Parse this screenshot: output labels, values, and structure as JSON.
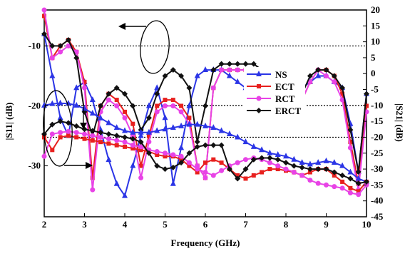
{
  "chart_data": {
    "type": "line",
    "xlabel": "Frequency (GHz)",
    "ylabel_left": "|S11| (dB)",
    "ylabel_right": "|S21| (dB)",
    "x_ticks": [
      2,
      3,
      4,
      5,
      6,
      7,
      8,
      9,
      10
    ],
    "y_left_ticks": [
      -10,
      -20,
      -30
    ],
    "y_right_ticks": [
      20,
      15,
      10,
      5,
      0,
      -5,
      -10,
      -15,
      -20,
      -25,
      -30,
      -35,
      -40,
      -45
    ],
    "xlim": [
      2,
      10
    ],
    "ylim_right": [
      -45,
      20
    ],
    "ylim_left": [
      -38.5,
      -4
    ],
    "reference_lines": [
      {
        "axis": "left",
        "value": -10
      },
      {
        "axis": "right",
        "value": -10
      },
      {
        "axis": "right",
        "value": -20
      }
    ],
    "legend": {
      "position": "center-right",
      "entries": [
        "NS",
        "ECT",
        "RCT",
        "ERCT"
      ]
    },
    "series": [
      {
        "name": "NS",
        "color": "#2b35e6",
        "marker": "triangle",
        "group": "S11",
        "x": [
          2,
          2.2,
          2.4,
          2.6,
          2.8,
          3.0,
          3.2,
          3.4,
          3.6,
          3.8,
          4.0,
          4.2,
          4.4,
          4.6,
          4.8,
          5.0,
          5.2,
          5.4,
          5.6,
          5.8,
          6.0,
          6.2,
          6.4,
          6.6,
          6.8,
          7.0,
          7.2,
          7.4,
          7.6,
          7.8,
          8.0,
          8.2,
          8.4,
          8.6,
          8.8,
          9.0,
          9.2,
          9.4,
          9.6,
          9.8,
          10.0
        ],
        "y": [
          -8,
          -15,
          -22,
          -25,
          -17,
          -16,
          -19,
          -24,
          -29,
          -33,
          -35,
          -30,
          -25,
          -20,
          -17,
          -22,
          -33,
          -27,
          -20,
          -15,
          -14,
          -14,
          -14,
          -15,
          -16,
          -17,
          -18,
          -17,
          -16,
          -15,
          -15,
          -16,
          -17,
          -16,
          -15,
          -15,
          -16,
          -17,
          -23,
          -31,
          -18
        ]
      },
      {
        "name": "ECT",
        "color": "#e8201e",
        "marker": "square",
        "group": "S11",
        "x": [
          2,
          2.2,
          2.4,
          2.6,
          2.8,
          3.0,
          3.2,
          3.4,
          3.6,
          3.8,
          4.0,
          4.2,
          4.4,
          4.6,
          4.8,
          5.0,
          5.2,
          5.4,
          5.6,
          5.8,
          6.0,
          6.2,
          6.4,
          6.6,
          6.8,
          7.0,
          7.2,
          7.4,
          7.6,
          7.8,
          8.0,
          8.2,
          8.4,
          8.6,
          8.8,
          9.0,
          9.2,
          9.4,
          9.6,
          9.8,
          10.0
        ],
        "y": [
          -5,
          -12,
          -10,
          -9,
          -11,
          -16,
          -32,
          -20,
          -18,
          -19,
          -21,
          -23,
          -30,
          -25,
          -20,
          -19,
          -19,
          -20,
          -22,
          -30,
          -32,
          -17,
          -14,
          -14,
          -14,
          -14,
          -14,
          -15,
          -15,
          -15,
          -14,
          -15,
          -19,
          -16,
          -14,
          -14,
          -15,
          -18,
          -26,
          -33,
          -20
        ]
      },
      {
        "name": "RCT",
        "color": "#e843e6",
        "marker": "circle",
        "group": "S11",
        "x": [
          2,
          2.2,
          2.4,
          2.6,
          2.8,
          3.0,
          3.2,
          3.4,
          3.6,
          3.8,
          4.0,
          4.2,
          4.4,
          4.6,
          4.8,
          5.0,
          5.2,
          5.4,
          5.6,
          5.8,
          6.0,
          6.2,
          6.4,
          6.6,
          6.8,
          7.0,
          7.2,
          7.4,
          7.6,
          7.8,
          8.0,
          8.2,
          8.4,
          8.6,
          8.8,
          9.0,
          9.2,
          9.4,
          9.6,
          9.8,
          10.0
        ],
        "y": [
          -4,
          -12,
          -11,
          -10,
          -11,
          -17,
          -34,
          -21,
          -19,
          -20,
          -22,
          -25,
          -32,
          -26,
          -21,
          -20,
          -20,
          -21,
          -23,
          -30,
          -32,
          -17,
          -14,
          -14,
          -14,
          -14,
          -14,
          -15,
          -15,
          -15,
          -15,
          -15,
          -19,
          -16,
          -14,
          -15,
          -16,
          -19,
          -27,
          -34,
          -21
        ]
      },
      {
        "name": "ERCT",
        "color": "#111111",
        "marker": "diamond",
        "group": "S11",
        "x": [
          2,
          2.2,
          2.4,
          2.6,
          2.8,
          3.0,
          3.2,
          3.4,
          3.6,
          3.8,
          4.0,
          4.2,
          4.4,
          4.6,
          4.8,
          5.0,
          5.2,
          5.4,
          5.6,
          5.8,
          6.0,
          6.2,
          6.4,
          6.6,
          6.8,
          7.0,
          7.2,
          7.4,
          7.6,
          7.8,
          8.0,
          8.2,
          8.4,
          8.6,
          8.8,
          9.0,
          9.2,
          9.4,
          9.6,
          9.8,
          10.0
        ],
        "y": [
          -8,
          -10,
          -10,
          -9,
          -12,
          -21,
          -25,
          -20,
          -18,
          -17,
          -18,
          -20,
          -24,
          -22,
          -18,
          -15,
          -14,
          -15,
          -17,
          -26,
          -20,
          -14,
          -13,
          -13,
          -13,
          -13,
          -13,
          -14,
          -14,
          -14,
          -14,
          -15,
          -18,
          -15,
          -14,
          -14,
          -15,
          -17,
          -24,
          -31,
          -18
        ]
      },
      {
        "name": "NS",
        "color": "#2b35e6",
        "marker": "triangle",
        "group": "S21",
        "x": [
          2,
          2.2,
          2.4,
          2.6,
          2.8,
          3.0,
          3.2,
          3.4,
          3.6,
          3.8,
          4.0,
          4.2,
          4.4,
          4.6,
          4.8,
          5.0,
          5.2,
          5.4,
          5.6,
          5.8,
          6.0,
          6.2,
          6.4,
          6.6,
          6.8,
          7.0,
          7.2,
          7.4,
          7.6,
          7.8,
          8.0,
          8.2,
          8.4,
          8.6,
          8.8,
          9.0,
          9.2,
          9.4,
          9.6,
          9.8,
          10.0
        ],
        "y": [
          -10,
          -9.5,
          -9.3,
          -9.4,
          -10,
          -11,
          -12.5,
          -14,
          -15.5,
          -17,
          -18,
          -18.5,
          -18.5,
          -18.5,
          -18,
          -17.5,
          -17,
          -16.5,
          -16,
          -16,
          -16.5,
          -17,
          -18,
          -19,
          -20,
          -21.5,
          -23,
          -24,
          -25,
          -25.5,
          -26,
          -27,
          -28,
          -28.5,
          -28,
          -27.5,
          -28,
          -29,
          -31,
          -33,
          -34
        ]
      },
      {
        "name": "ECT",
        "color": "#e8201e",
        "marker": "square",
        "group": "S21",
        "x": [
          2,
          2.2,
          2.4,
          2.6,
          2.8,
          3.0,
          3.2,
          3.4,
          3.6,
          3.8,
          4.0,
          4.2,
          4.4,
          4.6,
          4.8,
          5.0,
          5.2,
          5.4,
          5.6,
          5.8,
          6.0,
          6.2,
          6.4,
          6.6,
          6.8,
          7.0,
          7.2,
          7.4,
          7.6,
          7.8,
          8.0,
          8.2,
          8.4,
          8.6,
          8.8,
          9.0,
          9.2,
          9.4,
          9.6,
          9.8,
          10.0
        ],
        "y": [
          -20,
          -24,
          -20,
          -19.5,
          -20,
          -20.5,
          -21,
          -21.5,
          -22,
          -22.5,
          -23,
          -23.5,
          -24,
          -24.5,
          -25.5,
          -26,
          -26,
          -27,
          -29,
          -31,
          -28,
          -27,
          -28,
          -30,
          -32,
          -33,
          -32,
          -31,
          -30,
          -30,
          -30.5,
          -31,
          -32,
          -31,
          -30,
          -30,
          -32,
          -34,
          -36,
          -37,
          -34
        ]
      },
      {
        "name": "RCT",
        "color": "#e843e6",
        "marker": "circle",
        "group": "S21",
        "x": [
          2,
          2.2,
          2.4,
          2.6,
          2.8,
          3.0,
          3.2,
          3.4,
          3.6,
          3.8,
          4.0,
          4.2,
          4.4,
          4.6,
          4.8,
          5.0,
          5.2,
          5.4,
          5.6,
          5.8,
          6.0,
          6.2,
          6.4,
          6.6,
          6.8,
          7.0,
          7.2,
          7.4,
          7.6,
          7.8,
          8.0,
          8.2,
          8.4,
          8.6,
          8.8,
          9.0,
          9.2,
          9.4,
          9.6,
          9.8,
          10.0
        ],
        "y": [
          -26,
          -19,
          -18.5,
          -18.2,
          -18.5,
          -19,
          -19.5,
          -20,
          -20.5,
          -21,
          -21.5,
          -22.5,
          -23,
          -24,
          -24.5,
          -25,
          -25.5,
          -26,
          -28,
          -30,
          -31,
          -32,
          -30.5,
          -29,
          -28,
          -27,
          -26.5,
          -27,
          -28,
          -29,
          -30,
          -31,
          -32,
          -33.5,
          -34.5,
          -35,
          -35.5,
          -36,
          -37.5,
          -38,
          -35
        ]
      },
      {
        "name": "ERCT",
        "color": "#111111",
        "marker": "diamond",
        "group": "S21",
        "x": [
          2,
          2.2,
          2.4,
          2.6,
          2.8,
          3.0,
          3.2,
          3.4,
          3.6,
          3.8,
          4.0,
          4.2,
          4.4,
          4.6,
          4.8,
          5.0,
          5.2,
          5.4,
          5.6,
          5.8,
          6.0,
          6.2,
          6.4,
          6.6,
          6.8,
          7.0,
          7.2,
          7.4,
          7.6,
          7.8,
          8.0,
          8.2,
          8.4,
          8.6,
          8.8,
          9.0,
          9.2,
          9.4,
          9.6,
          9.8,
          10.0
        ],
        "y": [
          -19,
          -16,
          -15,
          -15.5,
          -16.5,
          -17.5,
          -18,
          -18.5,
          -19,
          -19.5,
          -20,
          -20.5,
          -21.5,
          -25,
          -29,
          -30,
          -29.5,
          -28,
          -25,
          -23,
          -22.5,
          -22.5,
          -22.5,
          -30,
          -33,
          -30,
          -27,
          -26.5,
          -26.5,
          -27,
          -28,
          -29,
          -29.5,
          -30,
          -30,
          -30,
          -31,
          -32,
          -33,
          -34.5,
          -34
        ]
      }
    ]
  }
}
